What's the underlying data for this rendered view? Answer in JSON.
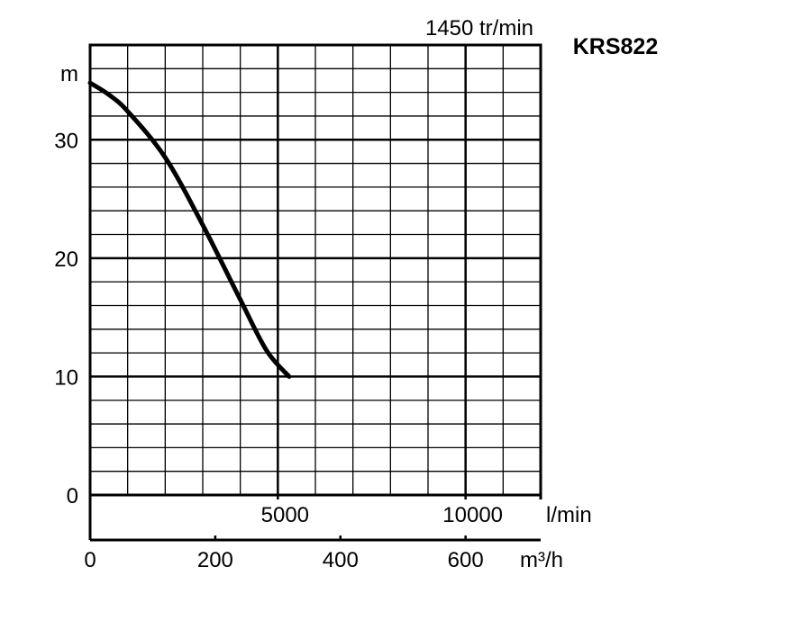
{
  "chart_data": {
    "type": "line",
    "title": "KRS822",
    "subtitle": "1450 tr/min",
    "ylabel": "m",
    "xlabel_primary": "l/min",
    "xlabel_secondary": "m³/h",
    "ylim": [
      0,
      38
    ],
    "xlim_lmin": [
      0,
      12000
    ],
    "y_ticks": [
      {
        "value": 0,
        "label": "0"
      },
      {
        "value": 10,
        "label": "10"
      },
      {
        "value": 20,
        "label": "20"
      },
      {
        "value": 30,
        "label": "30"
      }
    ],
    "x_ticks_lmin": [
      {
        "value": 5000,
        "label": "5000"
      },
      {
        "value": 10000,
        "label": "10000"
      }
    ],
    "x_ticks_m3h": [
      {
        "value": 0,
        "label": "0"
      },
      {
        "value": 200,
        "label": "200"
      },
      {
        "value": 400,
        "label": "400"
      },
      {
        "value": 600,
        "label": "600"
      }
    ],
    "grid": true,
    "series": [
      {
        "x_lmin": [
          0,
          500,
          1000,
          2000,
          3000,
          4000,
          4700,
          5300
        ],
        "y": [
          34.8,
          33.8,
          32.4,
          28.5,
          22.8,
          16.5,
          12.2,
          10
        ]
      }
    ]
  }
}
